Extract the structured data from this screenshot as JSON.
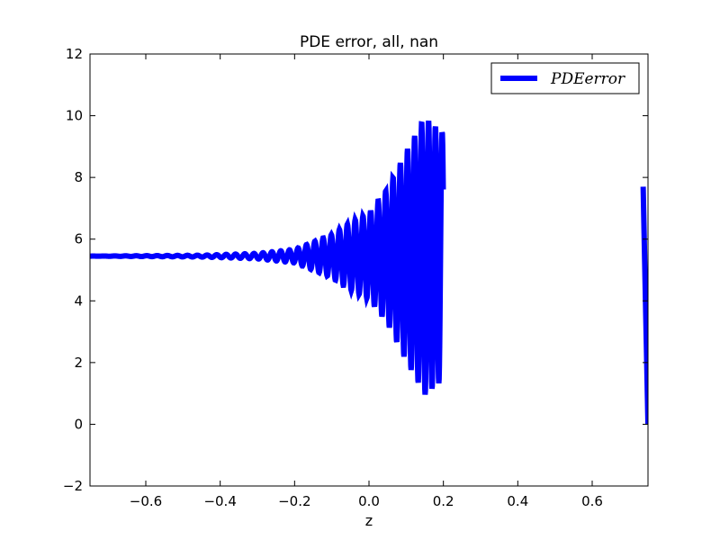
{
  "chart_data": {
    "type": "line",
    "title": "PDE error, all, nan",
    "xlabel": "z",
    "ylabel": "",
    "xlim": [
      -0.75,
      0.75
    ],
    "ylim": [
      -2,
      12
    ],
    "xticks": [
      -0.6,
      -0.4,
      -0.2,
      0.0,
      0.2,
      0.4,
      0.6
    ],
    "xtick_labels": [
      "−0.6",
      "−0.4",
      "−0.2",
      "0.0",
      "0.2",
      "0.4",
      "0.6"
    ],
    "yticks": [
      -2,
      0,
      2,
      4,
      6,
      8,
      10,
      12
    ],
    "ytick_labels": [
      "−2",
      "0",
      "2",
      "4",
      "6",
      "8",
      "10",
      "12"
    ],
    "grid": false,
    "legend": {
      "position": "top-right",
      "entries": [
        "PDEerror"
      ]
    },
    "series": [
      {
        "name": "PDEerror",
        "color": "#0000ff",
        "segments": [
          {
            "x_start": -0.75,
            "x_end": 0.2,
            "baseline": 5.45,
            "envelope": [
              [
                -0.75,
                0.0
              ],
              [
                -0.45,
                0.03
              ],
              [
                -0.3,
                0.09
              ],
              [
                -0.2,
                0.22
              ],
              [
                -0.1,
                0.7
              ],
              [
                -0.05,
                1.1
              ],
              [
                0.0,
                1.4
              ],
              [
                0.05,
                2.2
              ],
              [
                0.1,
                3.4
              ],
              [
                0.15,
                4.5
              ],
              [
                0.2,
                4.0
              ]
            ],
            "oscillation_period": [
              0.03,
              0.018
            ]
          },
          {
            "points": [
              [
                0.737,
                7.7
              ],
              [
                0.75,
                0.0
              ]
            ]
          }
        ]
      }
    ]
  }
}
